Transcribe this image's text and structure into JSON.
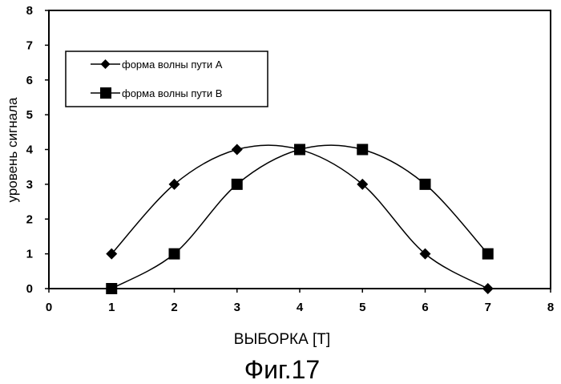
{
  "chart_data": {
    "type": "line",
    "xlabel": "ВЫБОРКА [T]",
    "ylabel": "уровень сигнала",
    "xlim": [
      0,
      8
    ],
    "ylim": [
      0,
      8
    ],
    "x_ticks": [
      "0",
      "1",
      "2",
      "3",
      "4",
      "5",
      "6",
      "7",
      "8"
    ],
    "y_ticks": [
      "0",
      "1",
      "2",
      "3",
      "4",
      "5",
      "6",
      "7",
      "8"
    ],
    "grid": false,
    "legend_position": "upper-left",
    "series": [
      {
        "name": "форма волны пути А",
        "marker": "diamond",
        "color": "#000000",
        "x": [
          1,
          2,
          3,
          4,
          5,
          6,
          7
        ],
        "y": [
          1,
          3,
          4,
          4,
          3,
          1,
          0
        ]
      },
      {
        "name": "форма волны пути В",
        "marker": "square",
        "color": "#000000",
        "x": [
          1,
          2,
          3,
          4,
          5,
          6,
          7
        ],
        "y": [
          0,
          1,
          3,
          4,
          4,
          3,
          1
        ]
      }
    ]
  },
  "figure_caption": "Фиг.17"
}
